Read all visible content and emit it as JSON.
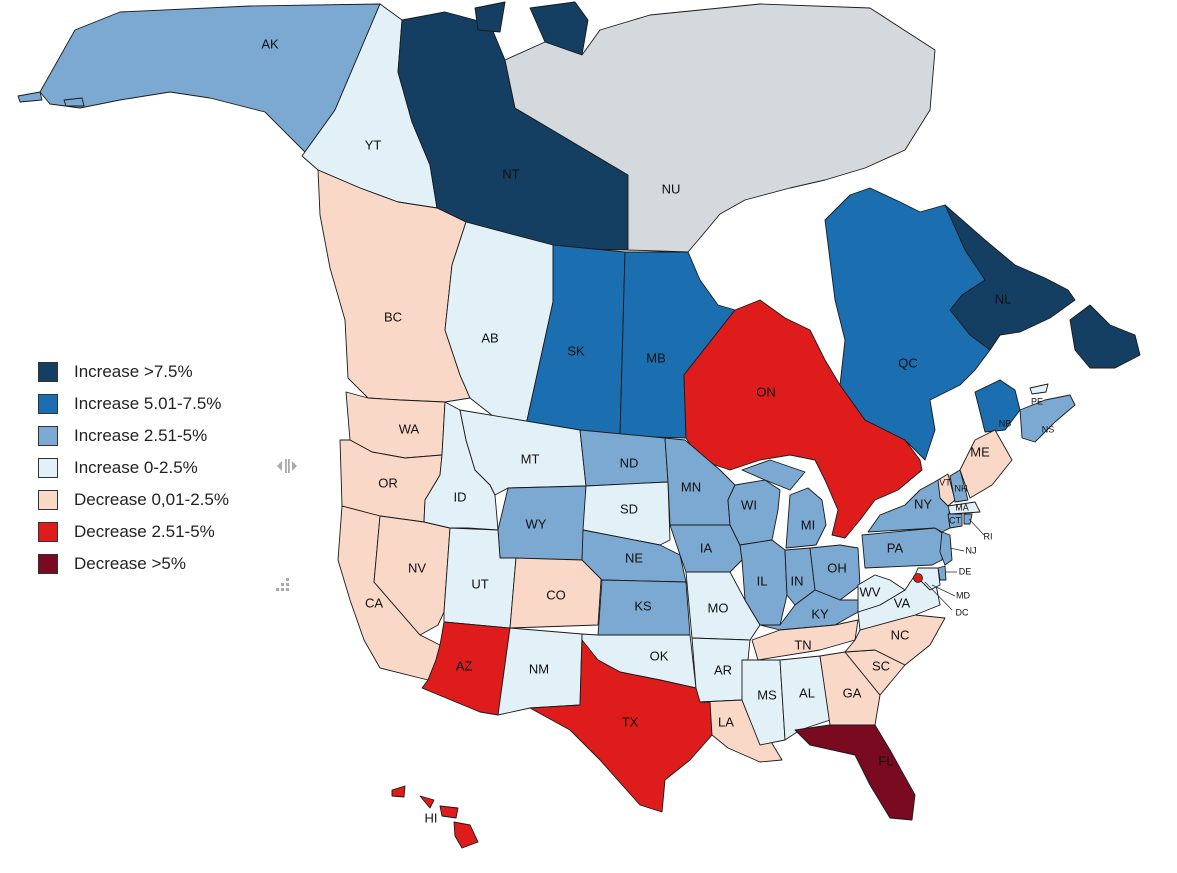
{
  "legend": [
    {
      "label": "Increase >7.5%",
      "color": "#143f62"
    },
    {
      "label": "Increase 5.01-7.5%",
      "color": "#1b6fb1"
    },
    {
      "label": "Increase 2.51-5%",
      "color": "#7ba9d2"
    },
    {
      "label": "Increase 0-2.5%",
      "color": "#e2f0f8"
    },
    {
      "label": "Decrease 0,01-2.5%",
      "color": "#fad8c8"
    },
    {
      "label": "Decrease 2.51-5%",
      "color": "#de1c1c"
    },
    {
      "label": "Decrease >5%",
      "color": "#7a0a20"
    }
  ],
  "no_data_color": "#d4d9dd",
  "regions": {
    "AK": {
      "label": "AK",
      "category": 2
    },
    "YT": {
      "label": "YT",
      "category": 3
    },
    "NT": {
      "label": "NT",
      "category": 0
    },
    "NU": {
      "label": "NU",
      "category": null
    },
    "BC": {
      "label": "BC",
      "category": 4
    },
    "AB": {
      "label": "AB",
      "category": 3
    },
    "SK": {
      "label": "SK",
      "category": 1
    },
    "MB": {
      "label": "MB",
      "category": 1
    },
    "ON": {
      "label": "ON",
      "category": 5
    },
    "QC": {
      "label": "QC",
      "category": 1
    },
    "NL": {
      "label": "NL",
      "category": 0
    },
    "NB": {
      "label": "NB",
      "category": 1
    },
    "NS": {
      "label": "NS",
      "category": 2
    },
    "PE": {
      "label": "PE",
      "category": 3
    },
    "WA": {
      "label": "WA",
      "category": 4
    },
    "OR": {
      "label": "OR",
      "category": 4
    },
    "CA": {
      "label": "CA",
      "category": 4
    },
    "NV": {
      "label": "NV",
      "category": 4
    },
    "ID": {
      "label": "ID",
      "category": 3
    },
    "MT": {
      "label": "MT",
      "category": 3
    },
    "WY": {
      "label": "WY",
      "category": 2
    },
    "UT": {
      "label": "UT",
      "category": 3
    },
    "CO": {
      "label": "CO",
      "category": 4
    },
    "AZ": {
      "label": "AZ",
      "category": 5
    },
    "NM": {
      "label": "NM",
      "category": 3
    },
    "ND": {
      "label": "ND",
      "category": 2
    },
    "SD": {
      "label": "SD",
      "category": 3
    },
    "NE": {
      "label": "NE",
      "category": 2
    },
    "KS": {
      "label": "KS",
      "category": 2
    },
    "OK": {
      "label": "OK",
      "category": 3
    },
    "TX": {
      "label": "TX",
      "category": 5
    },
    "MN": {
      "label": "MN",
      "category": 2
    },
    "IA": {
      "label": "IA",
      "category": 2
    },
    "MO": {
      "label": "MO",
      "category": 3
    },
    "AR": {
      "label": "AR",
      "category": 3
    },
    "LA": {
      "label": "LA",
      "category": 4
    },
    "WI": {
      "label": "WI",
      "category": 2
    },
    "IL": {
      "label": "IL",
      "category": 2
    },
    "MI": {
      "label": "MI",
      "category": 2
    },
    "IN": {
      "label": "IN",
      "category": 2
    },
    "OH": {
      "label": "OH",
      "category": 2
    },
    "KY": {
      "label": "KY",
      "category": 2
    },
    "TN": {
      "label": "TN",
      "category": 4
    },
    "MS": {
      "label": "MS",
      "category": 3
    },
    "AL": {
      "label": "AL",
      "category": 3
    },
    "GA": {
      "label": "GA",
      "category": 4
    },
    "FL": {
      "label": "FL",
      "category": 6
    },
    "SC": {
      "label": "SC",
      "category": 4
    },
    "NC": {
      "label": "NC",
      "category": 4
    },
    "VA": {
      "label": "VA",
      "category": 3
    },
    "WV": {
      "label": "WV",
      "category": 3
    },
    "PA": {
      "label": "PA",
      "category": 2
    },
    "NY": {
      "label": "NY",
      "category": 2
    },
    "VT": {
      "label": "VT",
      "category": 4
    },
    "NH": {
      "label": "NH",
      "category": 2
    },
    "ME": {
      "label": "ME",
      "category": 4
    },
    "MA": {
      "label": "MA",
      "category": 3
    },
    "CT": {
      "label": "CT",
      "category": 2
    },
    "RI": {
      "label": "RI",
      "category": 2
    },
    "NJ": {
      "label": "NJ",
      "category": 2
    },
    "DE": {
      "label": "DE",
      "category": 2
    },
    "MD": {
      "label": "MD",
      "category": 3
    },
    "DC": {
      "label": "DC",
      "category": 5
    },
    "HI": {
      "label": "HI",
      "category": 5
    }
  },
  "icons": {
    "split_handle": "split-handle-icon",
    "resize_grip": "resize-grip-icon"
  }
}
